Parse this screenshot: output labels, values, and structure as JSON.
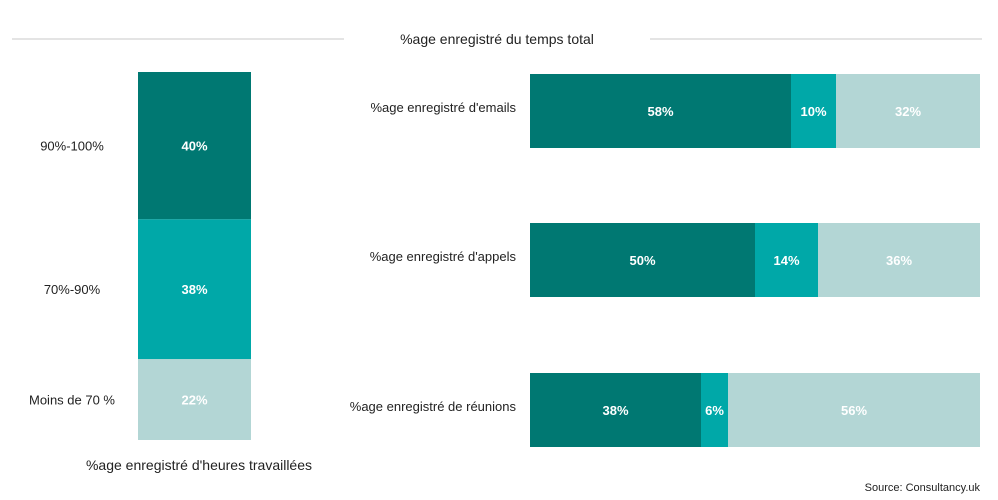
{
  "chart_data": [
    {
      "type": "bar",
      "stacked": true,
      "orientation": "vertical",
      "xlabel": "%age enregistré d'heures travaillées",
      "categories": [
        "Moins de 70 %",
        "70%-90%",
        "90%-100%"
      ],
      "values": [
        22,
        38,
        40
      ],
      "value_labels": [
        "22%",
        "38%",
        "40%"
      ],
      "colors": [
        "#b3d6d5",
        "#00a8a8",
        "#007872"
      ]
    },
    {
      "type": "bar",
      "stacked": true,
      "orientation": "horizontal",
      "title": "%age enregistré du temps total",
      "categories": [
        "%age enregistré d'emails",
        "%age enregistré d'appels",
        "%age enregistré de réunions"
      ],
      "series": [
        {
          "values": [
            58,
            50,
            38
          ],
          "labels": [
            "58%",
            "50%",
            "38%"
          ],
          "color": "#007872"
        },
        {
          "values": [
            10,
            14,
            6
          ],
          "labels": [
            "10%",
            "14%",
            "6%"
          ],
          "color": "#00a8a8"
        },
        {
          "values": [
            32,
            36,
            56
          ],
          "labels": [
            "32%",
            "36%",
            "56%"
          ],
          "color": "#b3d6d5"
        }
      ]
    }
  ],
  "source": "Source: Consultancy.uk",
  "label_color": "#ffffff",
  "rule_color": "#c8c8c8"
}
